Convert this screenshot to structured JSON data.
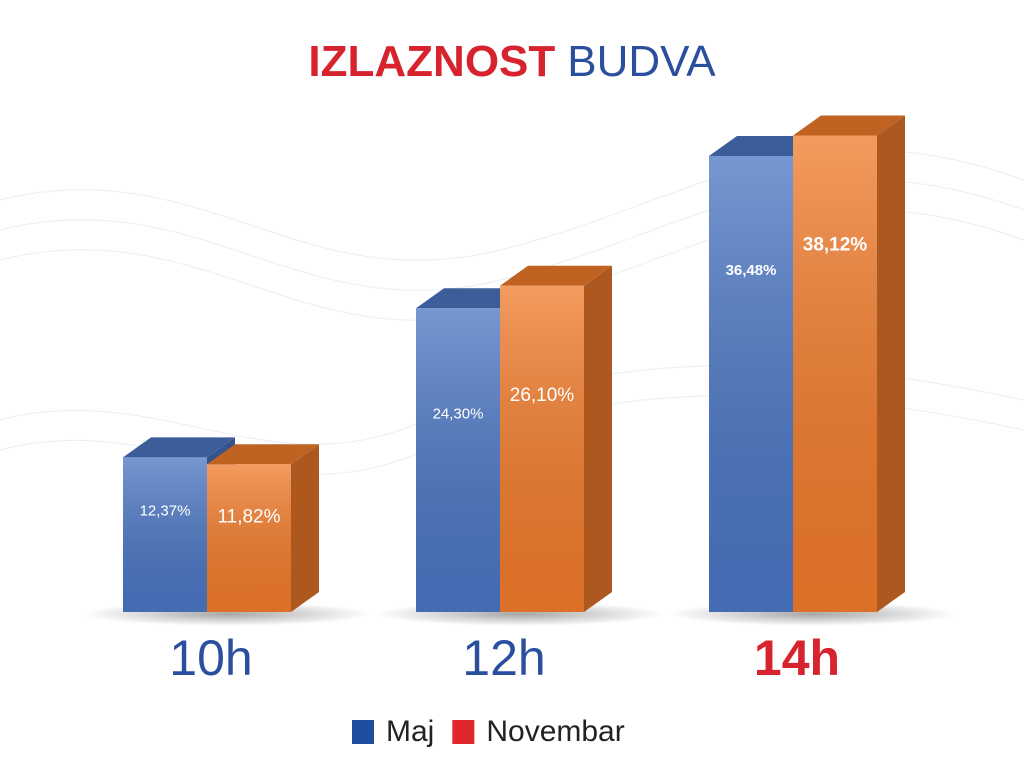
{
  "chart_data": {
    "type": "bar3d",
    "title": [
      "IZLAZNOST",
      "BUDVA"
    ],
    "title_colors": [
      "#d7232e",
      "#2a4f9e"
    ],
    "categories": [
      "10h",
      "12h",
      "14h"
    ],
    "category_color": "#2a4f9e",
    "highlight_index": 2,
    "highlight_color": "#d7232e",
    "series": [
      {
        "name": "Maj",
        "color": "#4a75c2",
        "legend_color": "#1f4e9e",
        "values": [
          12.37,
          24.3,
          36.48
        ],
        "value_labels": [
          "12,37%",
          "24,30%",
          "36,48%"
        ]
      },
      {
        "name": "Novembar",
        "color": "#f07a2a",
        "legend_color": "#e0282a",
        "values": [
          11.82,
          26.1,
          38.12
        ],
        "value_labels": [
          "11,82%",
          "26,10%",
          "38,12%"
        ]
      }
    ]
  }
}
